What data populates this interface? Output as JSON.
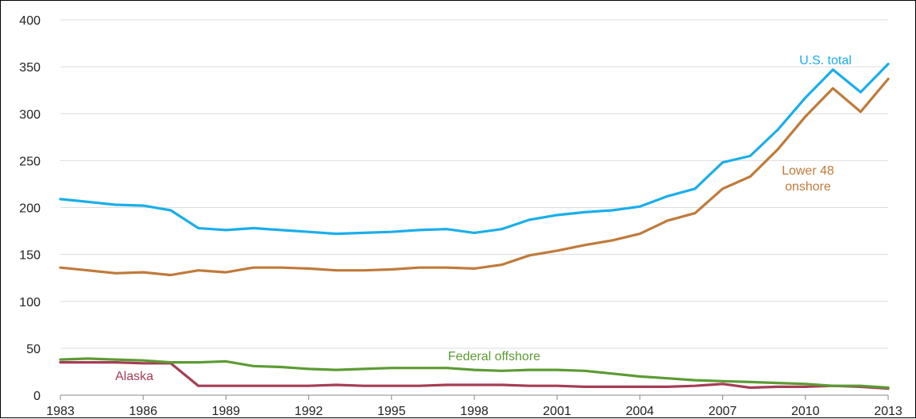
{
  "chart_data": {
    "type": "line",
    "title": "",
    "xlabel": "",
    "ylabel": "",
    "ylim": [
      0,
      400
    ],
    "xlim": [
      1983,
      2013
    ],
    "yticks": [
      0,
      50,
      100,
      150,
      200,
      250,
      300,
      350,
      400
    ],
    "xticks": [
      1983,
      1986,
      1989,
      1992,
      1995,
      1998,
      2001,
      2004,
      2007,
      2010,
      2013
    ],
    "grid": "horizontal",
    "x": [
      1983,
      1984,
      1985,
      1986,
      1987,
      1988,
      1989,
      1990,
      1991,
      1992,
      1993,
      1994,
      1995,
      1996,
      1997,
      1998,
      1999,
      2000,
      2001,
      2002,
      2003,
      2004,
      2005,
      2006,
      2007,
      2008,
      2009,
      2010,
      2011,
      2012,
      2013
    ],
    "series": [
      {
        "name": "U.S. total",
        "color": "#1aaeea",
        "values": [
          209,
          206,
          203,
          202,
          197,
          178,
          176,
          178,
          176,
          174,
          172,
          173,
          174,
          176,
          177,
          173,
          177,
          187,
          192,
          195,
          197,
          201,
          212,
          220,
          248,
          255,
          283,
          317,
          347,
          323,
          353
        ]
      },
      {
        "name": "Lower 48 onshore",
        "color": "#c07a3a",
        "values": [
          136,
          133,
          130,
          131,
          128,
          133,
          131,
          136,
          136,
          135,
          133,
          133,
          134,
          136,
          136,
          135,
          139,
          149,
          154,
          160,
          165,
          172,
          186,
          194,
          220,
          233,
          262,
          297,
          327,
          302,
          337
        ]
      },
      {
        "name": "Federal offshore",
        "color": "#5c9b33",
        "values": [
          38,
          39,
          38,
          37,
          35,
          35,
          36,
          31,
          30,
          28,
          27,
          28,
          29,
          29,
          29,
          27,
          26,
          27,
          27,
          26,
          23,
          20,
          18,
          16,
          15,
          14,
          13,
          12,
          10,
          10,
          8
        ]
      },
      {
        "name": "Alaska",
        "color": "#a53d55",
        "values": [
          35,
          35,
          35,
          34,
          34,
          10,
          10,
          10,
          10,
          10,
          11,
          10,
          10,
          10,
          11,
          11,
          11,
          10,
          10,
          9,
          9,
          9,
          9,
          10,
          12,
          8,
          9,
          9,
          10,
          9,
          7
        ]
      }
    ]
  }
}
